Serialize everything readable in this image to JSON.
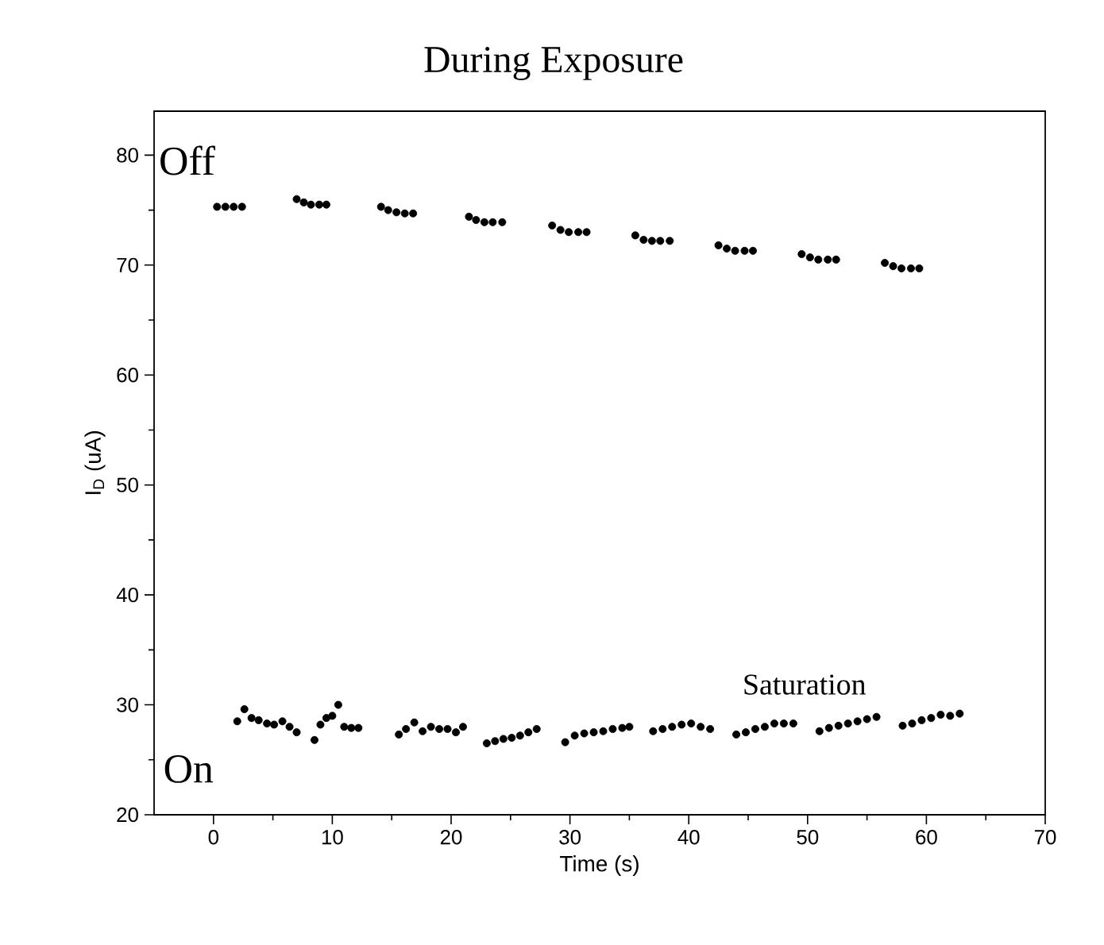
{
  "chart_data": {
    "type": "scatter",
    "title": "During Exposure",
    "xlabel": "Time (s)",
    "ylabel": "I$_{D}$ (uA)",
    "xlim": [
      -5,
      70
    ],
    "ylim": [
      20,
      84
    ],
    "xticks": [
      0,
      10,
      20,
      30,
      40,
      50,
      60,
      70
    ],
    "yticks": [
      20,
      30,
      40,
      50,
      60,
      70,
      80
    ],
    "marker": "circle",
    "grid": false,
    "annotations": [
      "Off",
      "On",
      "Saturation"
    ],
    "series": [
      {
        "color": "#000000",
        "x": [
          0.3,
          1,
          1.7,
          2.4,
          7,
          7.6,
          8.2,
          8.9,
          9.5,
          14.1,
          14.7,
          15.4,
          16.1,
          16.8,
          21.5,
          22.1,
          22.8,
          23.5,
          24.3,
          28.5,
          29.2,
          29.9,
          30.7,
          31.4,
          35.5,
          36.2,
          36.9,
          37.6,
          38.4,
          42.5,
          43.2,
          43.9,
          44.7,
          45.4,
          49.5,
          50.2,
          50.9,
          51.7,
          52.4,
          56.5,
          57.2,
          57.9,
          58.7,
          59.4
        ],
        "values": [
          75.3,
          75.3,
          75.3,
          75.3,
          76.0,
          75.7,
          75.5,
          75.5,
          75.5,
          75.3,
          75.0,
          74.8,
          74.7,
          74.7,
          74.4,
          74.1,
          73.9,
          73.9,
          73.9,
          73.6,
          73.2,
          73.0,
          73.0,
          73.0,
          72.7,
          72.3,
          72.2,
          72.2,
          72.2,
          71.8,
          71.5,
          71.3,
          71.3,
          71.3,
          71.0,
          70.7,
          70.5,
          70.5,
          70.5,
          70.2,
          69.9,
          69.7,
          69.7,
          69.7
        ]
      },
      {
        "color": "#000000",
        "x": [
          2,
          2.6,
          3.2,
          3.8,
          4.5,
          5.1,
          5.8,
          6.4,
          7,
          8.5,
          9,
          9.5,
          10,
          10.5,
          11,
          11.6,
          12.2,
          15.6,
          16.2,
          16.9,
          17.6,
          18.3,
          19,
          19.7,
          20.4,
          21,
          23,
          23.7,
          24.4,
          25.1,
          25.8,
          26.5,
          27.2,
          29.6,
          30.4,
          31.2,
          32,
          32.8,
          33.6,
          34.4,
          35,
          37,
          37.8,
          38.6,
          39.4,
          40.2,
          41,
          41.8,
          44,
          44.8,
          45.6,
          46.4,
          47.2,
          48,
          48.8,
          51,
          51.8,
          52.6,
          53.4,
          54.2,
          55,
          55.8,
          58,
          58.8,
          59.6,
          60.4,
          61.2,
          62,
          62.8
        ],
        "values": [
          28.5,
          29.6,
          28.8,
          28.6,
          28.3,
          28.2,
          28.5,
          28.0,
          27.5,
          26.8,
          28.2,
          28.8,
          29.0,
          30.0,
          28.0,
          27.9,
          27.9,
          27.3,
          27.8,
          28.4,
          27.6,
          28.0,
          27.8,
          27.8,
          27.5,
          28.0,
          26.5,
          26.7,
          26.9,
          27.0,
          27.2,
          27.5,
          27.8,
          26.6,
          27.2,
          27.4,
          27.5,
          27.6,
          27.8,
          27.9,
          28.0,
          27.6,
          27.8,
          28.0,
          28.2,
          28.3,
          28.0,
          27.8,
          27.3,
          27.5,
          27.8,
          28.0,
          28.3,
          28.3,
          28.3,
          27.6,
          27.9,
          28.1,
          28.3,
          28.5,
          28.7,
          28.9,
          28.1,
          28.3,
          28.6,
          28.8,
          29.1,
          29.0,
          29.2
        ]
      }
    ]
  }
}
